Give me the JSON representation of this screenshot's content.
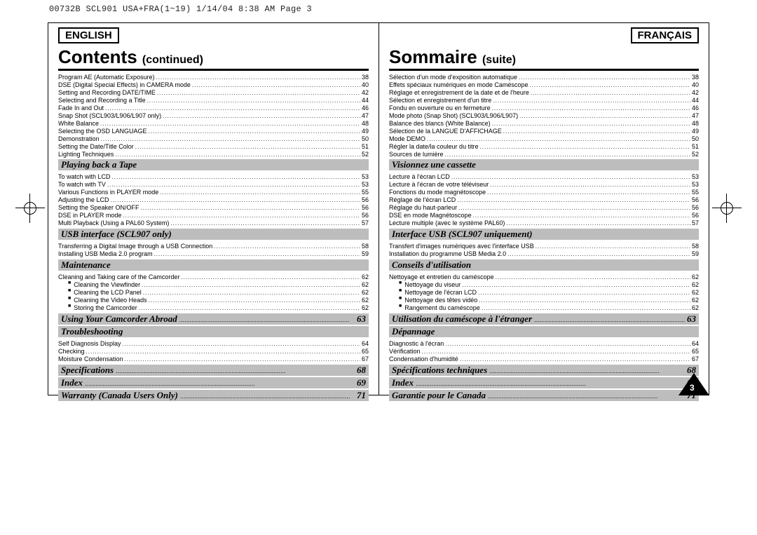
{
  "header": "00732B SCL901 USA+FRA(1~19)  1/14/04 8:38 AM  Page 3",
  "page_number": "3",
  "left": {
    "lang": "ENGLISH",
    "title": "Contents",
    "title_sub": "(continued)",
    "pre": [
      {
        "label": "Program AE (Automatic Exposure)",
        "page": "38"
      },
      {
        "label": "DSE (Digital Special Effects) in CAMERA mode",
        "page": "40"
      },
      {
        "label": "Setting and Recording DATE/TIME",
        "page": "42"
      },
      {
        "label": "Selecting and Recording a Title",
        "page": "44"
      },
      {
        "label": "Fade In and Out",
        "page": "46"
      },
      {
        "label": "Snap Shot (SCL903/L906/L907 only)",
        "page": "47"
      },
      {
        "label": "White Balance",
        "page": "48"
      },
      {
        "label": "Selecting the OSD LANGUAGE",
        "page": "49"
      },
      {
        "label": "Demonstration",
        "page": "50"
      },
      {
        "label": "Setting the Date/Title Color",
        "page": "51"
      },
      {
        "label": "Lighting Techniques",
        "page": "52"
      }
    ],
    "sections": [
      {
        "heading": "Playing back a Tape",
        "rows": [
          {
            "label": "To watch with LCD",
            "page": "53"
          },
          {
            "label": "To watch with TV",
            "page": "53"
          },
          {
            "label": "Various Functions in PLAYER mode",
            "page": "55"
          },
          {
            "label": "Adjusting the LCD",
            "page": "56"
          },
          {
            "label": "Setting the Speaker ON/OFF",
            "page": "56"
          },
          {
            "label": "DSE in PLAYER mode",
            "page": "56"
          },
          {
            "label": "Multi Playback (Using a PAL60 System)",
            "page": "57"
          }
        ]
      },
      {
        "heading": "USB interface (SCL907 only)",
        "rows": [
          {
            "label": "Transferring a Digital Image through a USB Connection",
            "page": "58"
          },
          {
            "label": "Installing USB Media 2.0 program",
            "page": "59"
          }
        ]
      },
      {
        "heading": "Maintenance",
        "rows": [
          {
            "label": "Cleaning and Taking care of the Camcorder",
            "page": "62"
          },
          {
            "label": "Cleaning the Viewfinder",
            "page": "62",
            "indent": true
          },
          {
            "label": "Cleaning the LCD Panel",
            "page": "62",
            "indent": true
          },
          {
            "label": "Cleaning the Video Heads",
            "page": "62",
            "indent": true
          },
          {
            "label": "Storing the Camcorder",
            "page": "62",
            "indent": true
          }
        ]
      },
      {
        "heading": "Using Your Camcorder Abroad",
        "heading_page": "63"
      },
      {
        "heading": "Troubleshooting",
        "rows": [
          {
            "label": "Self Diagnosis Display",
            "page": "64"
          },
          {
            "label": "Checking",
            "page": "65"
          },
          {
            "label": "Moisture Condensation",
            "page": "67"
          }
        ]
      },
      {
        "heading": "Specifications",
        "heading_page": "68"
      },
      {
        "heading": "Index",
        "heading_page": "69"
      },
      {
        "heading": "Warranty (Canada Users Only)",
        "heading_page": "71"
      }
    ]
  },
  "right": {
    "lang": "FRANÇAIS",
    "title": "Sommaire",
    "title_sub": "(suite)",
    "pre": [
      {
        "label": "Sélection d'un mode d'exposition automatique",
        "page": "38"
      },
      {
        "label": "Effets spéciaux numériques en mode Caméscope",
        "page": "40"
      },
      {
        "label": "Réglage et enregistrement de la date et de l'heure",
        "page": "42"
      },
      {
        "label": "Sélection et enregistrement d'un titre",
        "page": "44"
      },
      {
        "label": "Fondu en ouverture ou en fermeture",
        "page": "46"
      },
      {
        "label": "Mode photo (Snap Shot) (SCL903/L906/L907)",
        "page": "47"
      },
      {
        "label": "Balance des blancs (White Balance)",
        "page": "48"
      },
      {
        "label": "Sélection de la LANGUE D'AFFICHAGE",
        "page": "49"
      },
      {
        "label": "Mode DEMO",
        "page": "50"
      },
      {
        "label": "Régler la date/la couleur du titre",
        "page": "51"
      },
      {
        "label": "Sources de lumière",
        "page": "52"
      }
    ],
    "sections": [
      {
        "heading": "Visionnez une cassette",
        "rows": [
          {
            "label": "Lecture à l'écran LCD",
            "page": "53"
          },
          {
            "label": "Lecture à l'écran de votre téléviseur",
            "page": "53"
          },
          {
            "label": "Fonctions du mode magnétoscope",
            "page": "55"
          },
          {
            "label": "Réglage de l'écran LCD",
            "page": "56"
          },
          {
            "label": "Réglage du haut-parleur",
            "page": "56"
          },
          {
            "label": "DSE en mode Magnétoscope",
            "page": "56"
          },
          {
            "label": "Lecture multiple (avec le système PAL60)",
            "page": "57"
          }
        ]
      },
      {
        "heading": "Interface USB (SCL907 uniquement)",
        "rows": [
          {
            "label": "Transfert d'images numériques avec l'interface USB",
            "page": "58"
          },
          {
            "label": "Installation du programme USB Media 2.0",
            "page": "59"
          }
        ]
      },
      {
        "heading": "Conseils d'utilisation",
        "rows": [
          {
            "label": "Nettoyage et entretien du caméscope",
            "page": "62"
          },
          {
            "label": "Nettoyage du viseur",
            "page": "62",
            "indent": true
          },
          {
            "label": "Nettoyage de l'écran LCD",
            "page": "62",
            "indent": true
          },
          {
            "label": "Nettoyage des têtes vidéo",
            "page": "62",
            "indent": true
          },
          {
            "label": "Rangement du caméscope",
            "page": "62",
            "indent": true
          }
        ]
      },
      {
        "heading": "Utilisation du caméscope à l'étranger",
        "heading_page": "63"
      },
      {
        "heading": "Dépannage",
        "rows": [
          {
            "label": "Diagnostic à l'écran",
            "page": "64"
          },
          {
            "label": "Vérification",
            "page": "65"
          },
          {
            "label": "Condensation d'humidité",
            "page": "67"
          }
        ]
      },
      {
        "heading": "Spécifications techniques",
        "heading_page": "68"
      },
      {
        "heading": "Index",
        "heading_page": "69"
      },
      {
        "heading": "Garantie pour le Canada",
        "heading_page": "71"
      }
    ]
  }
}
